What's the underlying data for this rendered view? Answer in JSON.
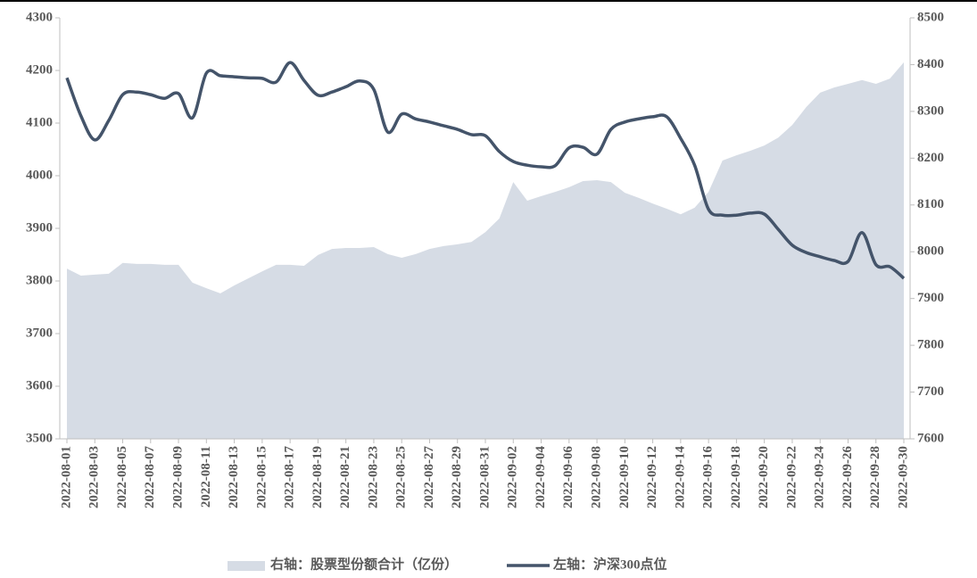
{
  "chart_data": {
    "type": "area-line",
    "categories": [
      "2022-08-01",
      null,
      "2022-08-03",
      null,
      "2022-08-05",
      null,
      "2022-08-07",
      null,
      "2022-08-09",
      null,
      "2022-08-11",
      null,
      "2022-08-13",
      null,
      "2022-08-15",
      null,
      "2022-08-17",
      null,
      "2022-08-19",
      null,
      "2022-08-21",
      null,
      "2022-08-23",
      null,
      "2022-08-25",
      null,
      "2022-08-27",
      null,
      "2022-08-29",
      null,
      "2022-08-31",
      null,
      "2022-09-02",
      null,
      "2022-09-04",
      null,
      "2022-09-06",
      null,
      "2022-09-08",
      null,
      "2022-09-10",
      null,
      "2022-09-12",
      null,
      "2022-09-14",
      null,
      "2022-09-16",
      null,
      "2022-09-18",
      null,
      "2022-09-20",
      null,
      "2022-09-22",
      null,
      "2022-09-24",
      null,
      "2022-09-26",
      null,
      "2022-09-28",
      null,
      "2022-09-30"
    ],
    "series": [
      {
        "name": "右轴：股票型份额合计（亿份）",
        "kind": "area",
        "axis": "y2",
        "color": "#d6dce5",
        "values": [
          7964,
          7949,
          7951,
          7953,
          7976,
          7974,
          7974,
          7972,
          7972,
          7934,
          7922,
          7911,
          7928,
          7943,
          7958,
          7972,
          7972,
          7970,
          7993,
          8006,
          8008,
          8008,
          8010,
          7995,
          7987,
          7995,
          8006,
          8012,
          8016,
          8021,
          8042,
          8071,
          8149,
          8109,
          8119,
          8128,
          8138,
          8151,
          8153,
          8149,
          8126,
          8115,
          8103,
          8092,
          8080,
          8094,
          8128,
          8195,
          8206,
          8216,
          8227,
          8244,
          8271,
          8309,
          8340,
          8351,
          8359,
          8367,
          8359,
          8370,
          8405
        ]
      },
      {
        "name": "左轴：沪深300点位",
        "kind": "line",
        "axis": "y",
        "color": "#44546a",
        "values": [
          4186,
          4114,
          4068,
          4105,
          4154,
          4159,
          4154,
          4147,
          4156,
          4110,
          4195,
          4190,
          4188,
          4186,
          4185,
          4178,
          4215,
          4181,
          4153,
          4159,
          4169,
          4180,
          4164,
          4083,
          4117,
          4108,
          4102,
          4095,
          4088,
          4078,
          4076,
          4046,
          4027,
          4020,
          4017,
          4019,
          4053,
          4054,
          4041,
          4088,
          4102,
          4108,
          4112,
          4112,
          4071,
          4020,
          3936,
          3925,
          3925,
          3929,
          3927,
          3898,
          3868,
          3854,
          3846,
          3839,
          3837,
          3892,
          3831,
          3827,
          3805
        ]
      }
    ],
    "ylim": [
      3500,
      4300
    ],
    "yticks": [
      3500,
      3600,
      3700,
      3800,
      3900,
      4000,
      4100,
      4200,
      4300
    ],
    "y2lim": [
      7600,
      8500
    ],
    "y2ticks": [
      7600,
      7700,
      7800,
      7900,
      8000,
      8100,
      8200,
      8300,
      8400,
      8500
    ],
    "grid": false,
    "legend": "bottom"
  }
}
